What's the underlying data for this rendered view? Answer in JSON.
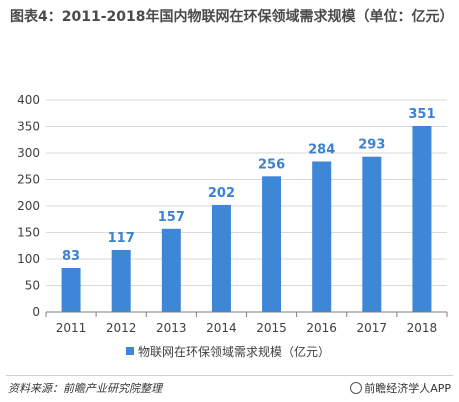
{
  "title": "图表4：2011-2018年国内物联网在环保领域需求规模（单位：亿元）",
  "footer": {
    "source": "资料来源：前瞻产业研究院整理",
    "brand": "前瞻经济学人APP"
  },
  "colors": {
    "bar": "#3e86d6",
    "label": "#3b82d1",
    "axis": "#7f7f7f",
    "grid": "#d9d9d9"
  },
  "chart_data": {
    "type": "bar",
    "categories": [
      "2011",
      "2012",
      "2013",
      "2014",
      "2015",
      "2016",
      "2017",
      "2018"
    ],
    "series": [
      {
        "name": "物联网在环保领域需求规模（亿元）",
        "values": [
          83,
          117,
          157,
          202,
          256,
          284,
          293,
          351
        ]
      }
    ],
    "y_ticks": [
      "0",
      "50",
      "100",
      "150",
      "200",
      "250",
      "300",
      "350",
      "400"
    ],
    "ylim": [
      0,
      400
    ],
    "legend_position": "bottom",
    "grid": true
  }
}
